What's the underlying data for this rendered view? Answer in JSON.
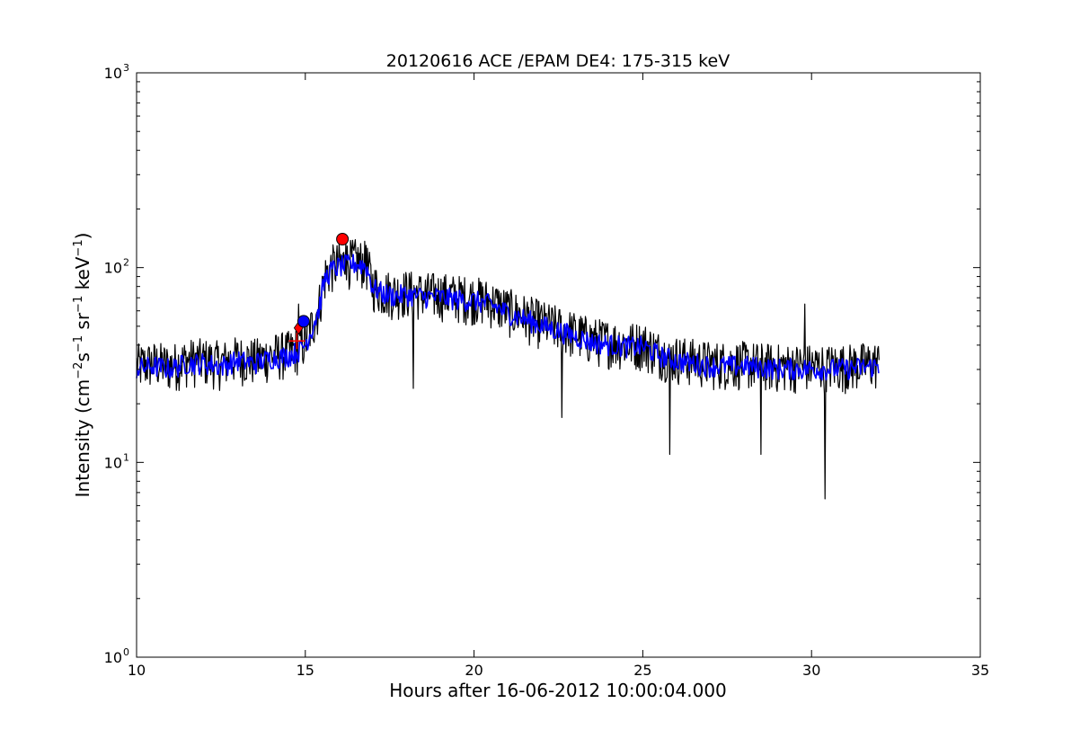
{
  "chart_data": {
    "type": "line",
    "title": "20120616 ACE /EPAM DE4: 175-315 keV",
    "xlabel": "Hours after 16-06-2012 10:00:04.000",
    "ylabel": {
      "prefix": "Intensity (cm",
      "sup1": "−2",
      "mid1": "s",
      "sup2": "−1",
      "mid2": " sr",
      "sup3": "−1",
      "mid3": " keV",
      "sup4": "−1",
      "suffix": ")"
    },
    "xlim": [
      10,
      35
    ],
    "ylim": [
      1,
      1000
    ],
    "yscale": "log",
    "grid": false,
    "x_ticks": [
      {
        "value": 10,
        "label": "10"
      },
      {
        "value": 15,
        "label": "15"
      },
      {
        "value": 20,
        "label": "20"
      },
      {
        "value": 25,
        "label": "25"
      },
      {
        "value": 30,
        "label": "30"
      },
      {
        "value": 35,
        "label": "35"
      }
    ],
    "y_ticks": [
      {
        "value": 1,
        "base": "10",
        "exp": "0"
      },
      {
        "value": 10,
        "base": "10",
        "exp": "1"
      },
      {
        "value": 100,
        "base": "10",
        "exp": "2"
      },
      {
        "value": 1000,
        "base": "10",
        "exp": "3"
      }
    ],
    "series": [
      {
        "style": "raw",
        "color": "#000000",
        "x": [
          10.0,
          10.5,
          11.0,
          11.5,
          12.0,
          12.5,
          13.0,
          13.5,
          14.0,
          14.5,
          14.8,
          15.0,
          15.2,
          15.4,
          15.6,
          15.8,
          16.0,
          16.2,
          16.5,
          16.8,
          17.0,
          17.3,
          17.6,
          18.0,
          18.5,
          19.0,
          19.5,
          20.0,
          20.5,
          21.0,
          21.5,
          22.0,
          22.5,
          23.0,
          23.5,
          24.0,
          24.5,
          25.0,
          25.5,
          26.0,
          27.0,
          28.0,
          29.0,
          30.0,
          31.0,
          32.0
        ],
        "y": [
          30,
          31,
          30,
          32,
          32,
          31,
          33,
          32,
          34,
          35,
          37,
          40,
          48,
          60,
          88,
          97,
          100,
          102,
          104,
          101,
          78,
          73,
          71,
          72,
          70,
          70,
          68,
          67,
          64,
          58,
          54,
          50,
          47,
          44,
          41,
          40,
          39,
          39,
          35,
          33,
          31,
          31,
          30,
          30,
          30,
          31
        ],
        "noise_factor": [
          0.75,
          1.35
        ],
        "spikes": [
          {
            "x": 14.8,
            "y": 65
          },
          {
            "x": 16.2,
            "y": 135
          },
          {
            "x": 16.8,
            "y": 130
          },
          {
            "x": 18.2,
            "y": 24
          },
          {
            "x": 22.6,
            "y": 17
          },
          {
            "x": 25.8,
            "y": 11
          },
          {
            "x": 28.5,
            "y": 11
          },
          {
            "x": 29.8,
            "y": 65
          },
          {
            "x": 30.4,
            "y": 6.5
          }
        ]
      },
      {
        "style": "smoothed",
        "color": "#0000ff",
        "x": [
          10.0,
          10.5,
          11.0,
          11.5,
          12.0,
          12.5,
          13.0,
          13.5,
          14.0,
          14.5,
          14.8,
          15.0,
          15.2,
          15.4,
          15.6,
          15.8,
          16.0,
          16.2,
          16.5,
          16.8,
          17.0,
          17.3,
          17.6,
          18.0,
          18.5,
          19.0,
          19.5,
          20.0,
          20.5,
          21.0,
          21.5,
          22.0,
          22.5,
          23.0,
          23.5,
          24.0,
          24.5,
          25.0,
          25.5,
          26.0,
          27.0,
          28.0,
          29.0,
          30.0,
          31.0,
          32.0
        ],
        "y": [
          30,
          31,
          30,
          32,
          32,
          31,
          33,
          32,
          34,
          35,
          37,
          40,
          48,
          60,
          88,
          97,
          100,
          102,
          104,
          101,
          78,
          73,
          71,
          72,
          70,
          70,
          68,
          67,
          64,
          58,
          54,
          50,
          47,
          44,
          41,
          40,
          39,
          39,
          35,
          33,
          31,
          31,
          30,
          30,
          30,
          31
        ],
        "noise_factor": [
          0.88,
          1.14
        ]
      }
    ],
    "markers": [
      {
        "name": "onset-cross",
        "shape": "plus",
        "x": 14.75,
        "y": 42,
        "color": "#ff0000"
      },
      {
        "name": "onset-diamond",
        "shape": "diamond",
        "x": 14.8,
        "y": 49,
        "color": "#ff0000"
      },
      {
        "name": "onset-circle-blue",
        "shape": "circle",
        "x": 14.95,
        "y": 53,
        "color": "#0000ff"
      },
      {
        "name": "peak-circle",
        "shape": "circle",
        "x": 16.1,
        "y": 140,
        "color": "#ff0000"
      }
    ]
  }
}
